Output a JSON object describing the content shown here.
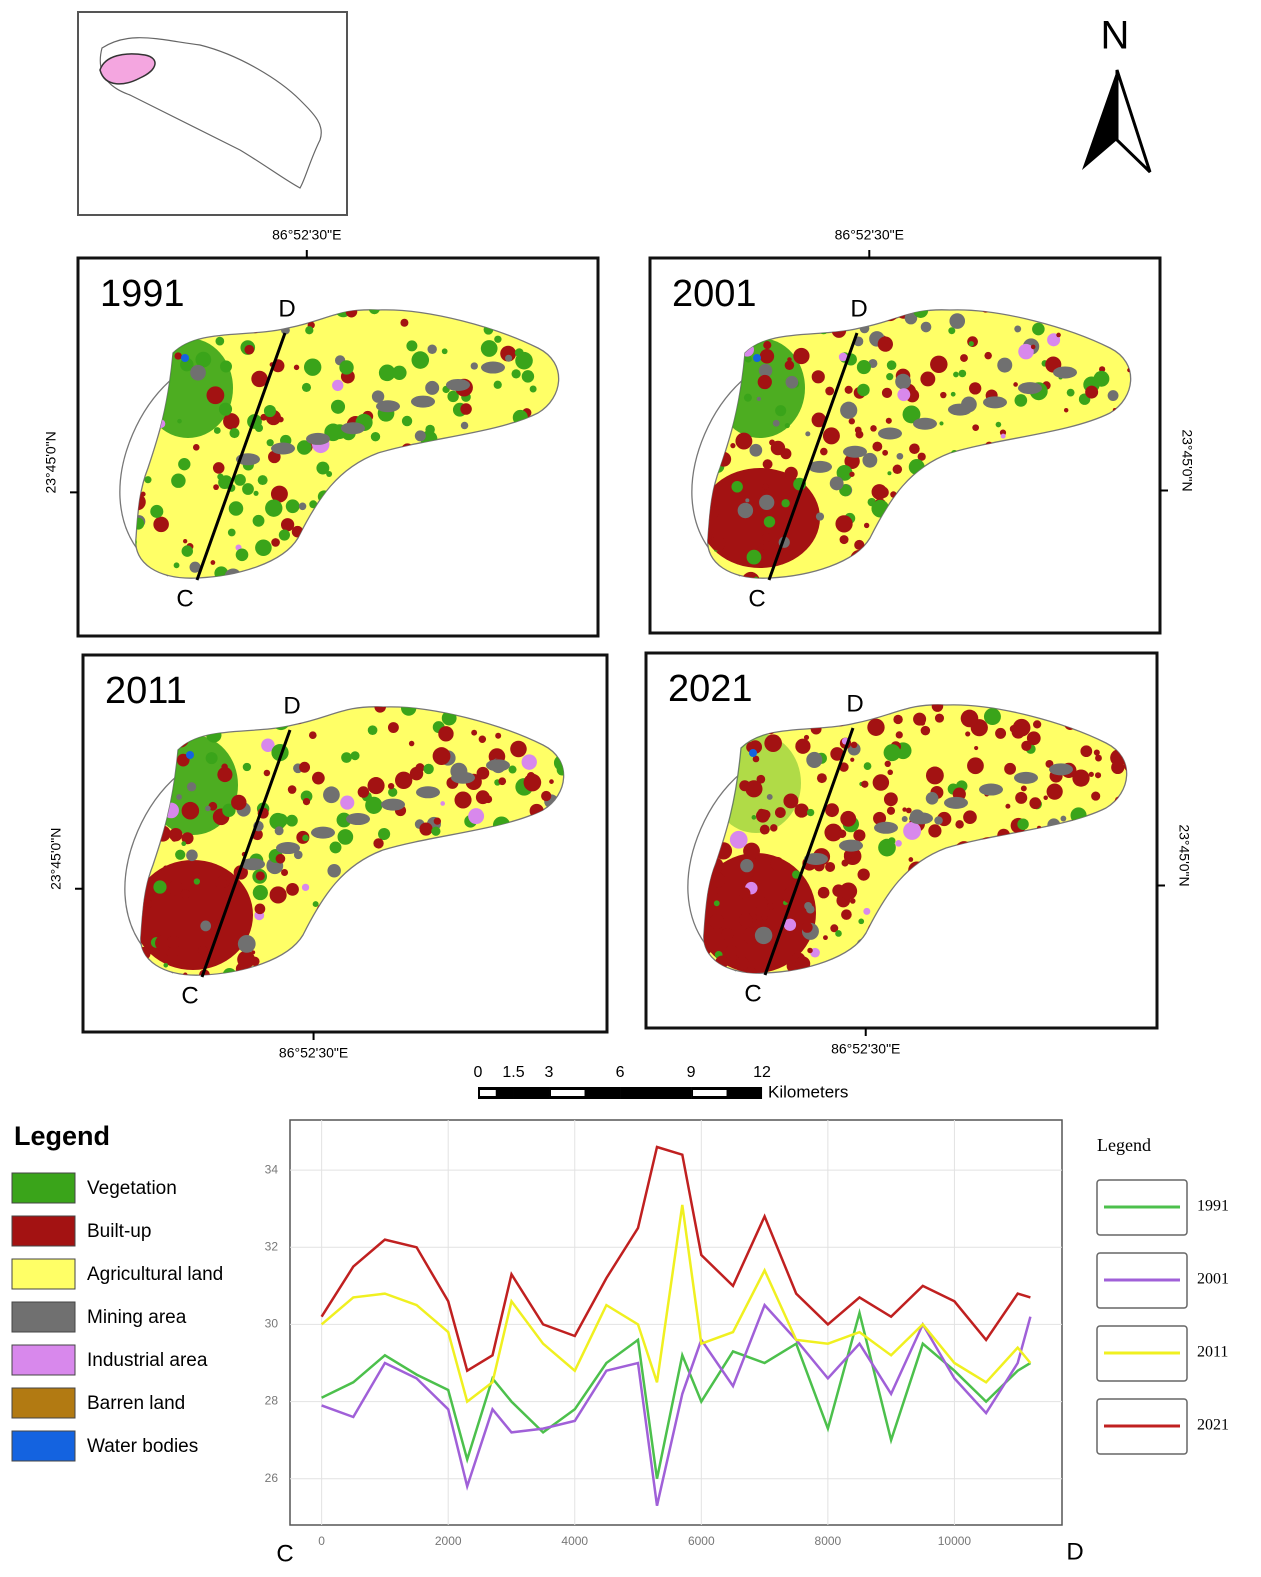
{
  "north": "N",
  "graticule": {
    "lon": "86°52'30\"E",
    "lat": "23°45'0\"N"
  },
  "maps": [
    {
      "year": "1991",
      "start": "C",
      "end": "D"
    },
    {
      "year": "2001",
      "start": "C",
      "end": "D"
    },
    {
      "year": "2011",
      "start": "C",
      "end": "D"
    },
    {
      "year": "2021",
      "start": "C",
      "end": "D"
    }
  ],
  "scale_bar": {
    "ticks": [
      0,
      1.5,
      3,
      6,
      9,
      12
    ],
    "unit": "Kilometers"
  },
  "legend": {
    "title": "Legend",
    "items": [
      {
        "label": "Vegetation",
        "color": "#3aa41a"
      },
      {
        "label": "Built-up",
        "color": "#a31212"
      },
      {
        "label": "Agricultural land",
        "color": "#ffff66"
      },
      {
        "label": "Mining area",
        "color": "#707070"
      },
      {
        "label": "Industrial area",
        "color": "#d888ec"
      },
      {
        "label": "Barren land",
        "color": "#b27a12"
      },
      {
        "label": "Water bodies",
        "color": "#1463e0"
      }
    ]
  },
  "chart_data": {
    "type": "line",
    "start_label": "C",
    "end_label": "D",
    "legend_title": "Legend",
    "x": [
      0,
      500,
      1000,
      1500,
      2000,
      2300,
      2700,
      3000,
      3500,
      4000,
      4500,
      5000,
      5300,
      5700,
      6000,
      6500,
      7000,
      7500,
      8000,
      8500,
      9000,
      9500,
      10000,
      10500,
      11000,
      11200
    ],
    "series": [
      {
        "name": "1991",
        "color": "#4cc04c",
        "values": [
          28.1,
          28.5,
          29.2,
          28.7,
          28.3,
          26.5,
          28.6,
          28.0,
          27.2,
          27.8,
          29.0,
          29.6,
          26.0,
          29.2,
          28.0,
          29.3,
          29.0,
          29.5,
          27.3,
          30.3,
          27.0,
          29.5,
          28.8,
          28.0,
          28.8,
          29.0
        ]
      },
      {
        "name": "2001",
        "color": "#a060d8",
        "values": [
          27.9,
          27.6,
          29.0,
          28.6,
          27.8,
          25.8,
          27.8,
          27.2,
          27.3,
          27.5,
          28.8,
          29.0,
          25.3,
          28.2,
          29.6,
          28.4,
          30.5,
          29.6,
          28.6,
          29.5,
          28.2,
          30.0,
          28.6,
          27.7,
          29.0,
          30.2
        ]
      },
      {
        "name": "2011",
        "color": "#f0f020",
        "values": [
          30.0,
          30.7,
          30.8,
          30.5,
          29.8,
          28.0,
          28.5,
          30.6,
          29.5,
          28.8,
          30.5,
          30.0,
          28.5,
          33.1,
          29.5,
          29.8,
          31.4,
          29.6,
          29.5,
          29.8,
          29.2,
          30.0,
          29.0,
          28.5,
          29.4,
          29.0
        ]
      },
      {
        "name": "2021",
        "color": "#c02020",
        "values": [
          30.2,
          31.5,
          32.2,
          32.0,
          30.6,
          28.8,
          29.2,
          31.3,
          30.0,
          29.7,
          31.2,
          32.5,
          34.6,
          34.4,
          31.8,
          31.0,
          32.8,
          30.8,
          30.0,
          30.7,
          30.2,
          31.0,
          30.6,
          29.6,
          30.8,
          30.7
        ]
      }
    ],
    "xlim": [
      -500,
      11700
    ],
    "ylim": [
      24.8,
      35.3
    ],
    "xticks": [
      0,
      2000,
      4000,
      6000,
      8000,
      10000
    ],
    "yticks": [
      26,
      28,
      30,
      32,
      34
    ],
    "grid": true
  }
}
